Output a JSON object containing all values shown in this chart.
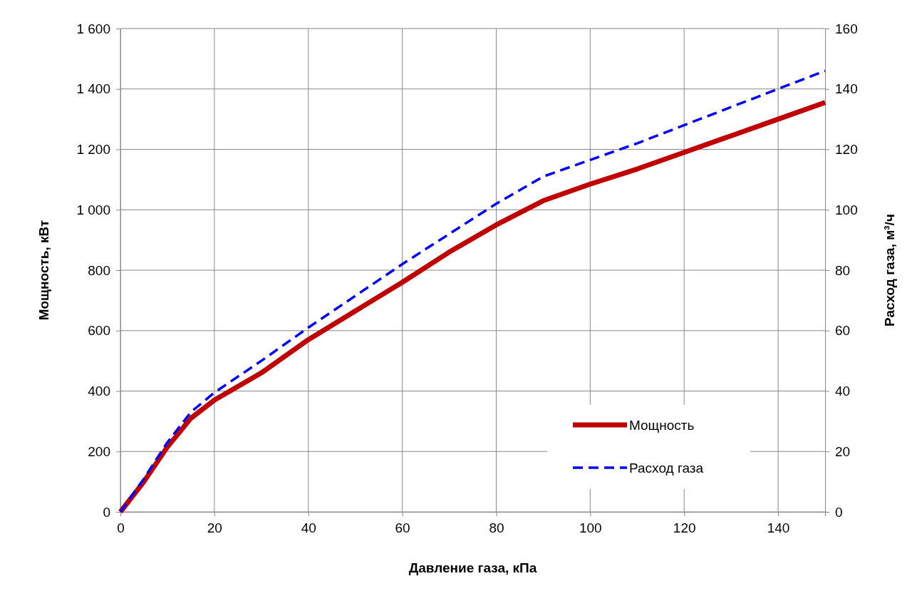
{
  "chart_data": {
    "type": "line",
    "xlabel": "Давление газа, кПа",
    "ylabel": "Мощность, кВт",
    "y2label": "Расход газа, м³/ч",
    "xlim": [
      0,
      150
    ],
    "xticks": [
      0,
      20,
      40,
      60,
      80,
      100,
      120,
      140
    ],
    "ylim": [
      0,
      1600
    ],
    "yticks": [
      0,
      200,
      400,
      600,
      800,
      {
        "value": 1000,
        "label": "1 000"
      },
      {
        "value": 1200,
        "label": "1 200"
      },
      {
        "value": 1400,
        "label": "1 400"
      },
      {
        "value": 1600,
        "label": "1 600"
      }
    ],
    "y2lim": [
      0,
      160
    ],
    "y2ticks": [
      0,
      20,
      40,
      60,
      80,
      100,
      120,
      140,
      160
    ],
    "grid": true,
    "legend": "bottom right",
    "series": [
      {
        "name": "Мощность",
        "color": "#c00000",
        "line_style": "solid",
        "x": [
          0,
          5,
          10,
          15,
          20,
          30,
          40,
          50,
          60,
          70,
          80,
          90,
          100,
          110,
          120,
          130,
          140,
          150
        ],
        "values": [
          0,
          100,
          215,
          310,
          370,
          460,
          570,
          665,
          760,
          860,
          950,
          1030,
          1085,
          1135,
          1190,
          1245,
          1300,
          1355
        ]
      },
      {
        "name": "Расход газа",
        "color": "#0000ff",
        "line_style": "dashed",
        "axis": "y2",
        "x": [
          0,
          5,
          10,
          15,
          20,
          30,
          40,
          50,
          60,
          70,
          80,
          90,
          100,
          110,
          120,
          130,
          140,
          150
        ],
        "values": [
          0,
          11,
          23,
          33,
          39.5,
          50,
          61,
          71.5,
          82,
          92,
          102,
          111,
          116.5,
          122,
          128,
          134,
          140,
          146
        ]
      }
    ]
  }
}
